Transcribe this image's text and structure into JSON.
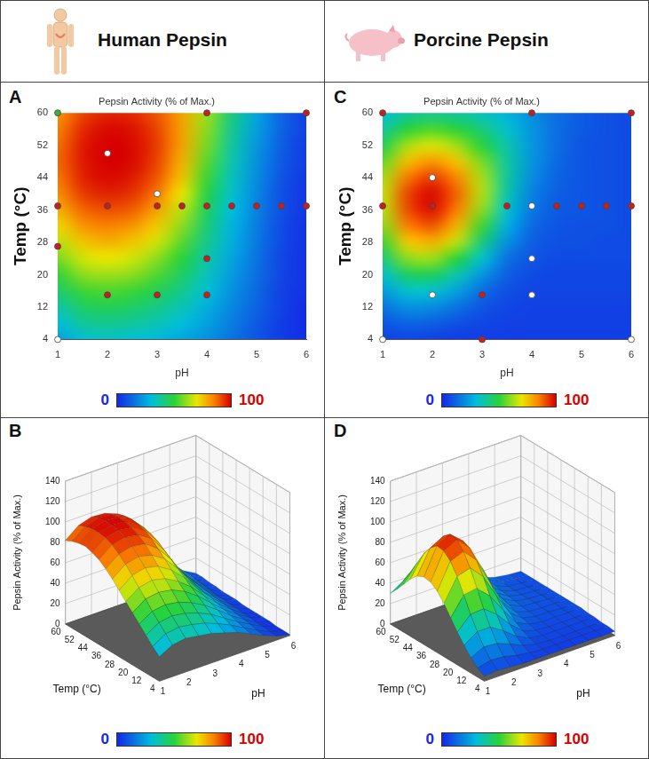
{
  "chart_data": [
    {
      "type": "heatmap_surface",
      "heading": "Human Pepsin",
      "panels": [
        "A",
        "B"
      ],
      "title": "Pepsin Activity (% of Max.)",
      "x_label": "pH",
      "y_label": "Temp (°C)",
      "z_label": "Pepsin Activity (% of Max.)",
      "xlim": [
        1,
        6
      ],
      "xticks": [
        1,
        2,
        3,
        4,
        5,
        6
      ],
      "ylim": [
        4,
        60
      ],
      "yticks": [
        4,
        12,
        20,
        28,
        36,
        44,
        52,
        60
      ],
      "zlim": [
        0,
        140
      ],
      "zticks": [
        0,
        20,
        40,
        60,
        80,
        100,
        120,
        140
      ],
      "x": [
        1,
        1.5,
        2,
        2.5,
        3,
        3.5,
        4,
        4.5,
        5,
        5.5,
        6
      ],
      "y": [
        4,
        8,
        12,
        16,
        20,
        24,
        28,
        32,
        36,
        40,
        44,
        48,
        52,
        56,
        60
      ],
      "cells": [
        [
          24,
          31,
          33,
          31,
          29,
          25,
          21,
          15,
          9,
          4,
          1
        ],
        [
          30,
          38,
          40,
          38,
          35,
          30,
          24,
          17,
          10,
          4,
          1
        ],
        [
          37,
          45,
          47,
          45,
          41,
          35,
          27,
          19,
          12,
          5,
          1
        ],
        [
          44,
          52,
          54,
          52,
          47,
          40,
          31,
          21,
          13,
          5,
          2
        ],
        [
          51,
          60,
          62,
          60,
          54,
          45,
          34,
          23,
          14,
          6,
          2
        ],
        [
          58,
          67,
          70,
          67,
          60,
          50,
          37,
          25,
          15,
          6,
          2
        ],
        [
          65,
          75,
          78,
          75,
          67,
          55,
          40,
          27,
          16,
          7,
          2
        ],
        [
          72,
          82,
          85,
          82,
          74,
          60,
          43,
          28,
          17,
          7,
          2
        ],
        [
          78,
          88,
          91,
          89,
          80,
          65,
          46,
          30,
          18,
          8,
          3
        ],
        [
          83,
          93,
          96,
          94,
          86,
          70,
          49,
          32,
          19,
          8,
          3
        ],
        [
          86,
          96,
          99,
          97,
          90,
          75,
          52,
          34,
          20,
          9,
          3
        ],
        [
          88,
          97,
          100,
          99,
          92,
          78,
          55,
          36,
          21,
          10,
          4
        ],
        [
          87,
          97,
          100,
          99,
          93,
          80,
          58,
          38,
          22,
          11,
          4
        ],
        [
          85,
          95,
          99,
          98,
          92,
          80,
          60,
          40,
          24,
          12,
          5
        ],
        [
          82,
          92,
          96,
          95,
          90,
          80,
          62,
          42,
          25,
          12,
          5
        ]
      ],
      "colorbar_range": [
        0,
        100
      ],
      "colorbar_ticks": [
        0,
        100
      ],
      "points": {
        "x": [
          1,
          2,
          4,
          6,
          1,
          2,
          3,
          3.5,
          4,
          4.5,
          5,
          5.5,
          6,
          3,
          1,
          2,
          3,
          4,
          4,
          1
        ],
        "y": [
          60,
          50,
          60,
          60,
          37,
          37,
          37,
          37,
          37,
          37,
          37,
          37,
          37,
          40,
          27,
          15,
          15,
          15,
          24,
          4
        ],
        "colors": [
          "#3cb043",
          "#ffffff",
          "#c81e1e",
          "#c81e1e",
          "#c81e1e",
          "#c81e1e",
          "#c81e1e",
          "#c81e1e",
          "#c81e1e",
          "#c81e1e",
          "#c81e1e",
          "#c81e1e",
          "#c81e1e",
          "#ffffff",
          "#c81e1e",
          "#c81e1e",
          "#c81e1e",
          "#c81e1e",
          "#c81e1e",
          "#ffffff"
        ]
      }
    },
    {
      "type": "heatmap_surface",
      "heading": "Porcine Pepsin",
      "panels": [
        "C",
        "D"
      ],
      "title": "Pepsin Activity (% of Max.)",
      "x_label": "pH",
      "y_label": "Temp (°C)",
      "z_label": "Pepsin Activity (% of Max.)",
      "xlim": [
        1,
        6
      ],
      "xticks": [
        1,
        2,
        3,
        4,
        5,
        6
      ],
      "ylim": [
        4,
        60
      ],
      "yticks": [
        4,
        12,
        20,
        28,
        36,
        44,
        52,
        60
      ],
      "zlim": [
        0,
        140
      ],
      "zticks": [
        0,
        20,
        40,
        60,
        80,
        100,
        120,
        140
      ],
      "x": [
        1,
        1.5,
        2,
        2.5,
        3,
        3.5,
        4,
        4.5,
        5,
        5.5,
        6
      ],
      "y": [
        4,
        8,
        12,
        16,
        20,
        24,
        28,
        32,
        36,
        40,
        44,
        48,
        52,
        56,
        60
      ],
      "cells": [
        [
          5,
          6,
          5,
          4,
          4,
          4,
          4,
          4,
          4,
          4,
          4
        ],
        [
          9,
          12,
          11,
          8,
          6,
          5,
          5,
          5,
          5,
          5,
          5
        ],
        [
          15,
          21,
          20,
          15,
          9,
          6,
          5,
          5,
          5,
          5,
          5
        ],
        [
          23,
          32,
          32,
          24,
          14,
          8,
          6,
          6,
          6,
          6,
          6
        ],
        [
          32,
          45,
          46,
          36,
          22,
          11,
          7,
          6,
          6,
          6,
          6
        ],
        [
          42,
          60,
          62,
          50,
          32,
          15,
          9,
          7,
          7,
          7,
          7
        ],
        [
          52,
          74,
          78,
          65,
          42,
          21,
          11,
          8,
          8,
          7,
          7
        ],
        [
          60,
          85,
          90,
          77,
          52,
          27,
          13,
          9,
          8,
          8,
          7
        ],
        [
          65,
          91,
          98,
          85,
          60,
          32,
          16,
          10,
          9,
          8,
          7
        ],
        [
          66,
          92,
          99,
          88,
          64,
          36,
          18,
          11,
          9,
          8,
          7
        ],
        [
          63,
          86,
          93,
          84,
          63,
          38,
          20,
          12,
          9,
          8,
          7
        ],
        [
          56,
          76,
          82,
          75,
          58,
          38,
          22,
          13,
          9,
          8,
          7
        ],
        [
          47,
          63,
          68,
          62,
          50,
          36,
          22,
          14,
          9,
          8,
          7
        ],
        [
          38,
          50,
          54,
          50,
          42,
          32,
          22,
          14,
          10,
          8,
          7
        ],
        [
          30,
          38,
          40,
          38,
          34,
          28,
          20,
          14,
          10,
          8,
          7
        ]
      ],
      "colorbar_range": [
        0,
        100
      ],
      "colorbar_ticks": [
        0,
        100
      ],
      "points": {
        "x": [
          1,
          4,
          6,
          2,
          1,
          2,
          3.5,
          4,
          4.5,
          5,
          5.5,
          6,
          4,
          4,
          2,
          3,
          3,
          1,
          6
        ],
        "y": [
          60,
          60,
          60,
          44,
          37,
          37,
          37,
          37,
          37,
          37,
          37,
          37,
          24,
          15,
          15,
          15,
          4,
          4,
          4
        ],
        "colors": [
          "#c81e1e",
          "#c81e1e",
          "#c81e1e",
          "#ffffff",
          "#c81e1e",
          "#c81e1e",
          "#c81e1e",
          "#ffffff",
          "#c81e1e",
          "#c81e1e",
          "#c81e1e",
          "#c81e1e",
          "#ffffff",
          "#ffffff",
          "#ffffff",
          "#c81e1e",
          "#c81e1e",
          "#ffffff",
          "#ffffff"
        ]
      }
    }
  ]
}
